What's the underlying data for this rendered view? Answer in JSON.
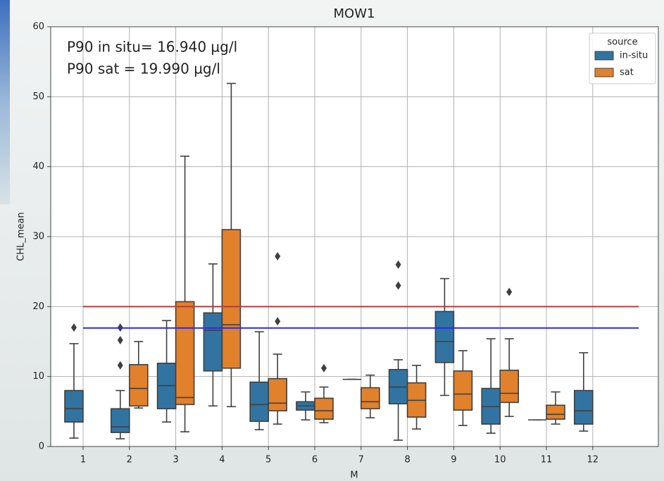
{
  "chart_data": {
    "type": "box",
    "title": "MOW1",
    "x_label": "M",
    "y_label": "CHL_mean",
    "categories": [
      "1",
      "2",
      "3",
      "4",
      "5",
      "6",
      "7",
      "8",
      "9",
      "10",
      "11",
      "12"
    ],
    "ylim": [
      0,
      60
    ],
    "yticks": [
      0,
      10,
      20,
      30,
      40,
      50,
      60
    ],
    "grid": true,
    "legend": {
      "title": "source",
      "position": "upper right"
    },
    "annotations": [
      {
        "text": "P90 in situ= 16.940 µg/l",
        "color": "#2222ee"
      },
      {
        "text": "P90 sat = 19.990 µg/l",
        "color": "#b03232"
      }
    ],
    "hlines": [
      {
        "value": 16.94,
        "color": "#2b2bdd"
      },
      {
        "value": 19.99,
        "color": "#b83a3a"
      }
    ],
    "series": [
      {
        "name": "in-situ",
        "color": "#3274a1",
        "boxes": [
          {
            "low": 1.2,
            "q1": 3.5,
            "median": 5.4,
            "q3": 8.0,
            "high": 14.7,
            "outliers": [
              17.0
            ]
          },
          {
            "low": 1.1,
            "q1": 2.0,
            "median": 2.8,
            "q3": 5.4,
            "high": 8.0,
            "outliers": [
              11.6,
              15.2,
              17.0
            ]
          },
          {
            "low": 3.5,
            "q1": 5.4,
            "median": 8.7,
            "q3": 11.9,
            "high": 18.0,
            "outliers": []
          },
          {
            "low": 5.8,
            "q1": 10.8,
            "median": 16.6,
            "q3": 19.1,
            "high": 26.1,
            "outliers": []
          },
          {
            "low": 2.4,
            "q1": 3.6,
            "median": 6.0,
            "q3": 9.2,
            "high": 16.4,
            "outliers": []
          },
          {
            "low": 3.8,
            "q1": 5.2,
            "median": 5.8,
            "q3": 6.4,
            "high": 7.8,
            "outliers": []
          },
          {
            "low": 9.6,
            "q1": 9.6,
            "median": 9.6,
            "q3": 9.6,
            "high": 9.6,
            "outliers": []
          },
          {
            "low": 0.9,
            "q1": 6.1,
            "median": 8.5,
            "q3": 11.0,
            "high": 12.4,
            "outliers": [
              23.0,
              26.0
            ]
          },
          {
            "low": 7.3,
            "q1": 12.0,
            "median": 15.0,
            "q3": 19.3,
            "high": 24.0,
            "outliers": []
          },
          {
            "low": 1.9,
            "q1": 3.2,
            "median": 5.7,
            "q3": 8.3,
            "high": 15.4,
            "outliers": []
          },
          {
            "low": 3.8,
            "q1": 3.8,
            "median": 3.8,
            "q3": 3.8,
            "high": 3.8,
            "outliers": []
          },
          {
            "low": 2.2,
            "q1": 3.2,
            "median": 5.1,
            "q3": 8.0,
            "high": 13.4,
            "outliers": []
          }
        ]
      },
      {
        "name": "sat",
        "color": "#e1812c",
        "boxes": [
          null,
          {
            "low": 5.5,
            "q1": 5.8,
            "median": 8.3,
            "q3": 11.7,
            "high": 15.0,
            "outliers": []
          },
          {
            "low": 2.1,
            "q1": 6.0,
            "median": 7.0,
            "q3": 20.7,
            "high": 41.5,
            "outliers": []
          },
          {
            "low": 5.7,
            "q1": 11.2,
            "median": 17.4,
            "q3": 31.0,
            "high": 51.9,
            "outliers": []
          },
          {
            "low": 3.2,
            "q1": 5.1,
            "median": 6.2,
            "q3": 9.7,
            "high": 13.2,
            "outliers": [
              17.9,
              27.2
            ]
          },
          {
            "low": 3.4,
            "q1": 3.9,
            "median": 5.1,
            "q3": 6.9,
            "high": 8.5,
            "outliers": [
              11.2
            ]
          },
          {
            "low": 4.1,
            "q1": 5.4,
            "median": 6.4,
            "q3": 8.4,
            "high": 10.2,
            "outliers": []
          },
          {
            "low": 2.5,
            "q1": 4.2,
            "median": 6.6,
            "q3": 9.1,
            "high": 11.6,
            "outliers": []
          },
          {
            "low": 3.0,
            "q1": 5.2,
            "median": 7.5,
            "q3": 10.8,
            "high": 13.7,
            "outliers": []
          },
          {
            "low": 4.3,
            "q1": 6.3,
            "median": 7.6,
            "q3": 10.9,
            "high": 15.4,
            "outliers": [
              22.1
            ]
          },
          {
            "low": 3.2,
            "q1": 3.9,
            "median": 4.6,
            "q3": 5.9,
            "high": 7.8,
            "outliers": []
          },
          null
        ]
      }
    ]
  }
}
